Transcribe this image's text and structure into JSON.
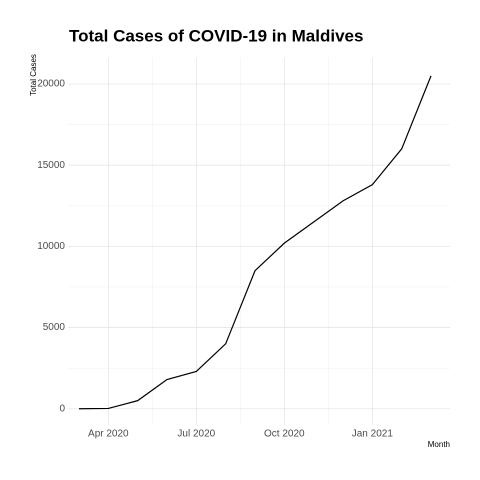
{
  "chart_data": {
    "type": "line",
    "title": "Total Cases of COVID-19 in Maldives",
    "x_label": "Month",
    "y_label": "Total Cases",
    "x": [
      "2020-03",
      "2020-04",
      "2020-05",
      "2020-06",
      "2020-07",
      "2020-08",
      "2020-09",
      "2020-10",
      "2020-11",
      "2020-12",
      "2021-01",
      "2021-02",
      "2021-03"
    ],
    "series": [
      {
        "name": "Total Cases",
        "color": "#000000",
        "values": [
          0,
          20,
          500,
          1800,
          2300,
          4000,
          8500,
          10200,
          11500,
          12800,
          13800,
          16000,
          20500
        ]
      }
    ],
    "xlim": [
      "2020-03",
      "2021-03"
    ],
    "xticks": [
      {
        "value": "2020-04",
        "label": "Apr 2020"
      },
      {
        "value": "2020-07",
        "label": "Jul 2020"
      },
      {
        "value": "2020-10",
        "label": "Oct 2020"
      },
      {
        "value": "2021-01",
        "label": "Jan 2021"
      }
    ],
    "ylim": [
      -1000,
      21000
    ],
    "yticks": [
      0,
      5000,
      10000,
      15000,
      20000
    ],
    "grid": true
  }
}
